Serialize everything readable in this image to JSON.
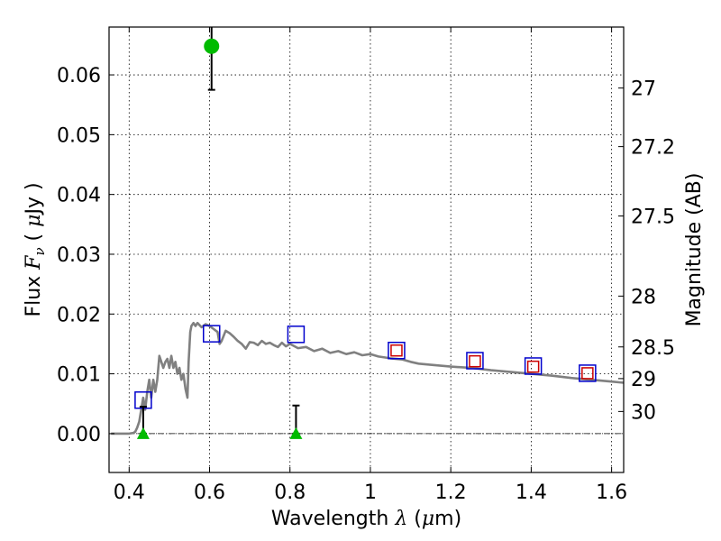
{
  "chart_data": {
    "type": "scatter",
    "xlabel_parts": [
      "Wavelength  ",
      "λ",
      " (",
      "μ",
      "m)"
    ],
    "ylabel_parts": [
      "Flux  ",
      "F",
      "ν",
      "  ( ",
      "μ",
      "Jy )"
    ],
    "y2label": "Magnitude (AB)",
    "xlim": [
      0.35,
      1.63
    ],
    "ylim": [
      -0.0065,
      0.068
    ],
    "grid": true,
    "x_ticks": [
      0.4,
      0.6,
      0.8,
      1.0,
      1.2,
      1.4,
      1.6
    ],
    "x_tick_labels": [
      "0.4",
      "0.6",
      "0.8",
      "1",
      "1.2",
      "1.4",
      "1.6"
    ],
    "y_ticks": [
      0.0,
      0.01,
      0.02,
      0.03,
      0.04,
      0.05,
      0.06
    ],
    "y_tick_labels": [
      "0.00",
      "0.01",
      "0.02",
      "0.03",
      "0.04",
      "0.05",
      "0.06"
    ],
    "y2_ticks": [
      {
        "label": "27",
        "flux": 0.0578
      },
      {
        "label": "27.2",
        "flux": 0.048
      },
      {
        "label": "27.5",
        "flux": 0.0364
      },
      {
        "label": "28",
        "flux": 0.023
      },
      {
        "label": "28.5",
        "flux": 0.0145
      },
      {
        "label": "29",
        "flux": 0.0092
      },
      {
        "label": "30",
        "flux": 0.0037
      }
    ],
    "series": [
      {
        "kind": "line",
        "color": "#808080",
        "x": [
          0.355,
          0.38,
          0.4,
          0.41,
          0.415,
          0.42,
          0.425,
          0.43,
          0.435,
          0.44,
          0.445,
          0.45,
          0.455,
          0.46,
          0.465,
          0.47,
          0.475,
          0.48,
          0.485,
          0.49,
          0.495,
          0.5,
          0.505,
          0.51,
          0.515,
          0.52,
          0.525,
          0.53,
          0.535,
          0.54,
          0.545,
          0.548,
          0.552,
          0.555,
          0.56,
          0.565,
          0.57,
          0.58,
          0.59,
          0.6,
          0.61,
          0.62,
          0.625,
          0.63,
          0.64,
          0.65,
          0.66,
          0.67,
          0.68,
          0.69,
          0.7,
          0.71,
          0.72,
          0.73,
          0.74,
          0.75,
          0.76,
          0.77,
          0.78,
          0.79,
          0.8,
          0.82,
          0.84,
          0.86,
          0.88,
          0.9,
          0.92,
          0.94,
          0.96,
          0.98,
          1.0,
          1.02,
          1.05,
          1.08,
          1.1,
          1.12,
          1.15,
          1.2,
          1.25,
          1.3,
          1.35,
          1.4,
          1.45,
          1.5,
          1.55,
          1.6,
          1.63
        ],
        "y": [
          0.0,
          0.0,
          0.0,
          0.0001,
          0.0003,
          0.001,
          0.002,
          0.004,
          0.006,
          0.004,
          0.007,
          0.009,
          0.006,
          0.009,
          0.007,
          0.009,
          0.013,
          0.012,
          0.011,
          0.012,
          0.0125,
          0.011,
          0.013,
          0.011,
          0.012,
          0.01,
          0.011,
          0.009,
          0.01,
          0.0075,
          0.006,
          0.012,
          0.017,
          0.018,
          0.0185,
          0.018,
          0.0185,
          0.0178,
          0.0183,
          0.018,
          0.0175,
          0.017,
          0.015,
          0.0155,
          0.0172,
          0.0168,
          0.0162,
          0.0155,
          0.015,
          0.0142,
          0.0153,
          0.0152,
          0.0148,
          0.0155,
          0.015,
          0.0152,
          0.0148,
          0.0145,
          0.0152,
          0.0146,
          0.015,
          0.0143,
          0.0145,
          0.0138,
          0.0142,
          0.0135,
          0.0138,
          0.0133,
          0.0136,
          0.0131,
          0.0133,
          0.0129,
          0.0126,
          0.0124,
          0.012,
          0.0117,
          0.0115,
          0.0112,
          0.011,
          0.0106,
          0.0103,
          0.01,
          0.0097,
          0.0093,
          0.009,
          0.0087,
          0.0085
        ]
      },
      {
        "kind": "open-square",
        "color": "#0000cc",
        "x": [
          0.435,
          0.605,
          0.815,
          1.065,
          1.26,
          1.405,
          1.54
        ],
        "y": [
          0.0056,
          0.0167,
          0.0166,
          0.0139,
          0.0122,
          0.0113,
          0.0101
        ]
      },
      {
        "kind": "open-square-small",
        "color": "#cc0000",
        "x": [
          1.065,
          1.26,
          1.405,
          1.54
        ],
        "y": [
          0.0139,
          0.0121,
          0.0112,
          0.0101
        ]
      },
      {
        "kind": "errorbar",
        "color": "#000000",
        "points": [
          {
            "x": 0.435,
            "low": 0.0,
            "high": 0.0045
          },
          {
            "x": 0.605,
            "low": 0.0575,
            "high": 0.068
          },
          {
            "x": 0.815,
            "low": 0.0,
            "high": 0.0047
          }
        ]
      },
      {
        "kind": "filled-circle",
        "color": "#00bb00",
        "x": [
          0.605
        ],
        "y": [
          0.0648
        ]
      },
      {
        "kind": "triangle",
        "color": "#00bb00",
        "x": [
          0.435,
          0.815
        ],
        "y": [
          0.0,
          0.0
        ]
      }
    ]
  }
}
